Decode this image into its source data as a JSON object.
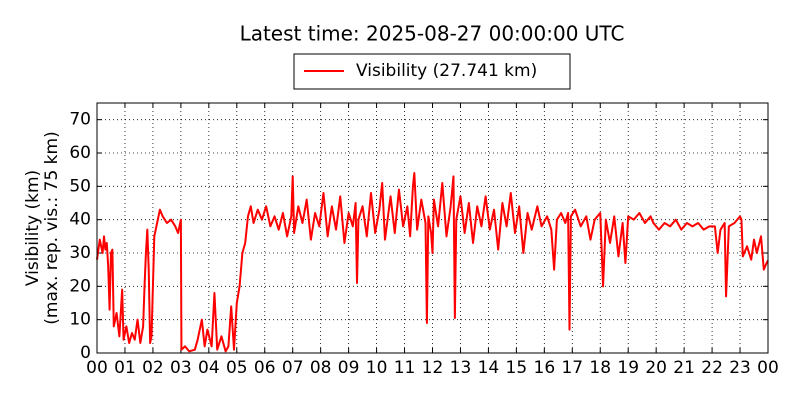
{
  "chart_data": {
    "type": "line",
    "title": "Latest time: 2025-08-27 00:00:00 UTC",
    "ylabel": [
      "Visibility (km)",
      "(max. rep. vis.: 75 km)"
    ],
    "legend": "upper center",
    "grid": true,
    "xlim": [
      0,
      24
    ],
    "ylim": [
      0,
      75
    ],
    "xticks": [
      {
        "value": 0,
        "label": "00"
      },
      {
        "value": 1,
        "label": "01"
      },
      {
        "value": 2,
        "label": "02"
      },
      {
        "value": 3,
        "label": "03"
      },
      {
        "value": 4,
        "label": "04"
      },
      {
        "value": 5,
        "label": "05"
      },
      {
        "value": 6,
        "label": "06"
      },
      {
        "value": 7,
        "label": "07"
      },
      {
        "value": 8,
        "label": "08"
      },
      {
        "value": 9,
        "label": "09"
      },
      {
        "value": 10,
        "label": "10"
      },
      {
        "value": 11,
        "label": "11"
      },
      {
        "value": 12,
        "label": "12"
      },
      {
        "value": 13,
        "label": "13"
      },
      {
        "value": 14,
        "label": "14"
      },
      {
        "value": 15,
        "label": "15"
      },
      {
        "value": 16,
        "label": "16"
      },
      {
        "value": 17,
        "label": "17"
      },
      {
        "value": 18,
        "label": "18"
      },
      {
        "value": 19,
        "label": "19"
      },
      {
        "value": 20,
        "label": "20"
      },
      {
        "value": 21,
        "label": "21"
      },
      {
        "value": 22,
        "label": "22"
      },
      {
        "value": 23,
        "label": "23"
      },
      {
        "value": 24,
        "label": "00"
      }
    ],
    "yticks": [
      0,
      10,
      20,
      30,
      40,
      50,
      60,
      70
    ],
    "x": [
      0,
      0.1,
      0.2,
      0.25,
      0.3,
      0.35,
      0.4,
      0.45,
      0.5,
      0.55,
      0.6,
      0.7,
      0.8,
      0.9,
      0.95,
      1.05,
      1.15,
      1.25,
      1.35,
      1.45,
      1.55,
      1.65,
      1.7,
      1.75,
      1.8,
      1.85,
      1.9,
      1.95,
      2.0,
      2.05,
      2.15,
      2.25,
      2.35,
      2.5,
      2.65,
      2.8,
      2.9,
      3.0,
      3.02,
      3.15,
      3.3,
      3.5,
      3.6,
      3.75,
      3.85,
      3.95,
      4.1,
      4.2,
      4.3,
      4.45,
      4.6,
      4.7,
      4.8,
      4.9,
      5.0,
      5.1,
      5.2,
      5.3,
      5.4,
      5.5,
      5.6,
      5.75,
      5.9,
      6.05,
      6.2,
      6.35,
      6.5,
      6.65,
      6.8,
      6.95,
      7.0,
      7.05,
      7.2,
      7.35,
      7.5,
      7.65,
      7.8,
      7.95,
      8.1,
      8.25,
      8.4,
      8.55,
      8.7,
      8.85,
      9.0,
      9.15,
      9.25,
      9.3,
      9.35,
      9.5,
      9.65,
      9.8,
      9.95,
      10.1,
      10.2,
      10.3,
      10.5,
      10.65,
      10.8,
      10.95,
      11.1,
      11.2,
      11.3,
      11.35,
      11.45,
      11.6,
      11.75,
      11.8,
      11.85,
      11.95,
      12.0,
      12.05,
      12.2,
      12.35,
      12.5,
      12.65,
      12.75,
      12.8,
      12.85,
      13.0,
      13.15,
      13.3,
      13.45,
      13.6,
      13.75,
      13.9,
      14.05,
      14.2,
      14.35,
      14.5,
      14.65,
      14.8,
      14.95,
      15.1,
      15.25,
      15.4,
      15.55,
      15.75,
      15.9,
      16.1,
      16.25,
      16.35,
      16.45,
      16.6,
      16.75,
      16.85,
      16.9,
      16.95,
      17.1,
      17.3,
      17.5,
      17.65,
      17.8,
      18.0,
      18.1,
      18.2,
      18.35,
      18.5,
      18.65,
      18.8,
      18.9,
      19.0,
      19.2,
      19.4,
      19.6,
      19.8,
      19.9,
      20.1,
      20.3,
      20.5,
      20.7,
      20.9,
      21.1,
      21.3,
      21.5,
      21.7,
      21.9,
      22.1,
      22.2,
      22.3,
      22.45,
      22.5,
      22.6,
      22.8,
      23.0,
      23.05,
      23.1,
      23.25,
      23.4,
      23.5,
      23.6,
      23.75,
      23.85,
      23.95,
      24.0
    ],
    "series": [
      {
        "name": "Visibility (27.741 km)",
        "color": "#ff0000",
        "values": [
          28,
          34,
          30,
          35,
          31,
          33,
          26,
          13,
          30,
          31,
          8,
          12,
          5,
          19,
          4,
          8,
          3,
          6,
          4,
          10,
          3,
          8,
          20,
          30,
          37,
          25,
          3,
          5,
          20,
          35,
          39,
          43,
          41,
          39,
          40,
          38,
          36,
          40,
          1,
          2,
          0.5,
          1,
          4,
          10,
          2,
          7,
          2,
          18,
          1,
          5,
          0.5,
          2,
          14,
          1,
          15,
          20,
          30,
          33,
          41,
          44,
          39,
          43,
          40,
          44,
          38,
          41,
          37,
          42,
          35,
          41,
          53,
          36,
          44,
          39,
          46,
          34,
          42,
          38,
          48,
          35,
          44,
          37,
          47,
          33,
          42,
          38,
          45,
          21,
          40,
          44,
          35,
          48,
          36,
          43,
          51,
          34,
          47,
          36,
          49,
          38,
          44,
          35,
          50,
          54,
          37,
          46,
          39,
          9,
          41,
          36,
          30,
          46,
          38,
          51,
          35,
          44,
          53,
          10.5,
          40,
          47,
          36,
          45,
          33,
          44,
          38,
          47,
          37,
          43,
          31,
          45,
          38,
          48,
          36,
          44,
          30,
          42,
          37,
          44,
          38,
          41,
          37,
          25,
          40,
          42,
          39,
          42,
          7,
          41,
          43,
          38,
          41,
          34,
          40,
          42,
          20,
          40,
          33,
          41,
          29,
          39,
          27,
          41,
          40,
          42,
          39,
          41,
          39,
          37,
          39,
          38,
          40,
          37,
          39,
          38,
          39,
          37,
          38,
          38,
          30,
          37,
          39,
          17,
          38,
          39,
          41,
          40,
          29,
          32,
          28,
          34,
          30,
          35,
          25,
          27,
          27.741
        ]
      }
    ]
  }
}
